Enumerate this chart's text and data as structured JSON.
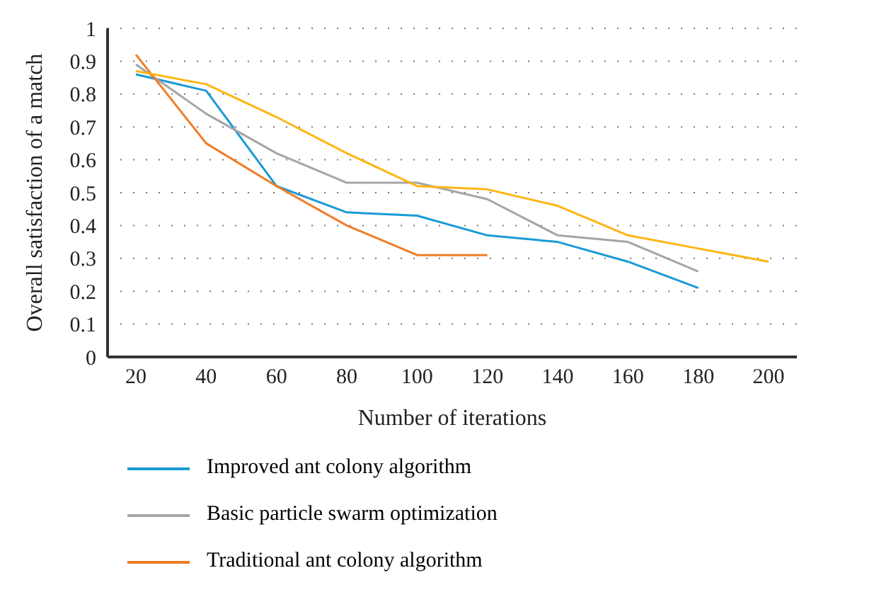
{
  "chart_data": {
    "type": "line",
    "xlabel": "Number of iterations",
    "ylabel": "Overall satisfaction of a match",
    "categories": [
      "20",
      "40",
      "60",
      "80",
      "100",
      "120",
      "140",
      "160",
      "180",
      "200"
    ],
    "series": [
      {
        "name": "Improved ant colony algorithm",
        "color": "#1a9ad6",
        "values": [
          0.86,
          0.81,
          0.52,
          0.44,
          0.43,
          0.37,
          0.35,
          0.29,
          0.21,
          null
        ]
      },
      {
        "name": "Basic particle swarm optimization",
        "color": "#a5a5a5",
        "values": [
          0.89,
          0.74,
          0.62,
          0.53,
          0.53,
          0.48,
          0.37,
          0.35,
          0.26,
          null
        ]
      },
      {
        "name": "Traditional ant colony algorithm",
        "color": "#f07c27",
        "values": [
          0.92,
          0.65,
          0.52,
          0.4,
          0.31,
          0.31,
          null,
          null,
          null,
          null
        ]
      },
      {
        "color": "#fdb515",
        "values": [
          0.87,
          0.83,
          0.73,
          0.62,
          0.52,
          0.51,
          0.46,
          0.37,
          0.33,
          0.29
        ]
      }
    ],
    "ylim": [
      0,
      1
    ],
    "yticks": [
      0,
      {
        "value": 0.1,
        "label": "0.1"
      },
      0.2,
      0.3,
      0.4,
      0.5,
      0.6,
      0.7,
      0.8,
      0.9,
      1
    ],
    "grid": "y",
    "legend": "bottom",
    "marker": "none",
    "line_style": "solid"
  }
}
